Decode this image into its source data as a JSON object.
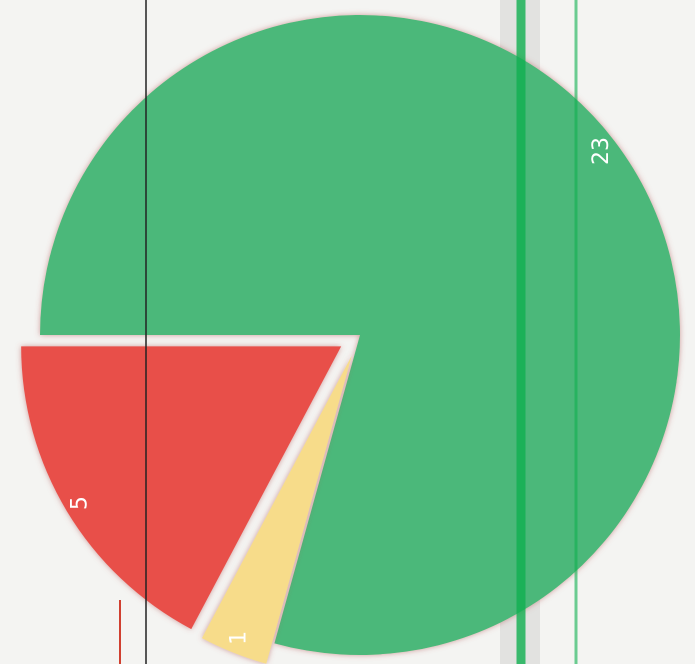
{
  "chart_data": {
    "type": "pie",
    "values": [
      23,
      1,
      5
    ],
    "colors": [
      "#4cb87a",
      "#f7dc8a",
      "#e8504a"
    ]
  }
}
